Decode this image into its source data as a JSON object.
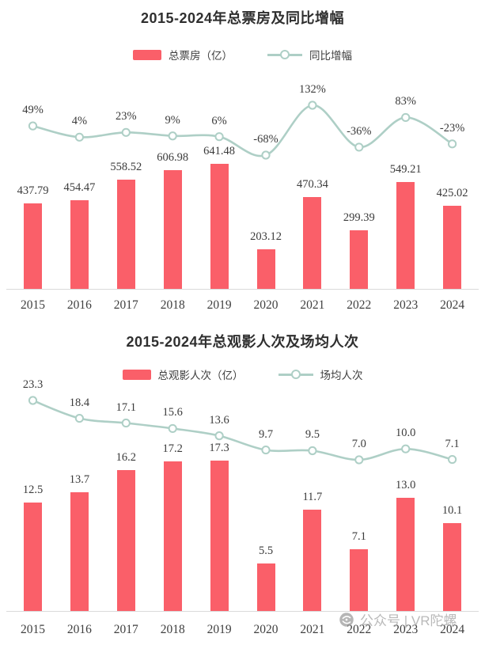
{
  "colors": {
    "bar": "#fa5f69",
    "line": "#aecfc6",
    "label": "#3b3b3b",
    "axis": "#dadada",
    "title": "#2f2f2f"
  },
  "watermark": {
    "icon": "gyro-logo",
    "text": "公众号 | VR陀螺"
  },
  "chart_data": [
    {
      "type": "bar",
      "title": "2015-2024年总票房及同比增幅",
      "categories": [
        "2015",
        "2016",
        "2017",
        "2018",
        "2019",
        "2020",
        "2021",
        "2022",
        "2023",
        "2024"
      ],
      "legend_position": "top",
      "grid": false,
      "xlabel": "",
      "ylabel": "",
      "series": [
        {
          "name": "总票房（亿）",
          "type": "bar",
          "color": "#fa5f69",
          "values": [
            437.79,
            454.47,
            558.52,
            606.98,
            641.48,
            203.12,
            470.34,
            299.39,
            549.21,
            425.02
          ],
          "labels": [
            "437.79",
            "454.47",
            "558.52",
            "606.98",
            "641.48",
            "203.12",
            "470.34",
            "299.39",
            "549.21",
            "425.02"
          ]
        },
        {
          "name": "同比增幅",
          "type": "line",
          "color": "#aecfc6",
          "values": [
            49,
            4,
            23,
            9,
            6,
            -68,
            132,
            -36,
            83,
            -23
          ],
          "labels": [
            "49%",
            "4%",
            "23%",
            "9%",
            "6%",
            "-68%",
            "132%",
            "-36%",
            "83%",
            "-23%"
          ]
        }
      ]
    },
    {
      "type": "bar",
      "title": "2015-2024年总观影人次及场均人次",
      "categories": [
        "2015",
        "2016",
        "2017",
        "2018",
        "2019",
        "2020",
        "2021",
        "2022",
        "2023",
        "2024"
      ],
      "legend_position": "top",
      "grid": false,
      "xlabel": "",
      "ylabel": "",
      "series": [
        {
          "name": "总观影人次（亿）",
          "type": "bar",
          "color": "#fa5f69",
          "values": [
            12.5,
            13.7,
            16.2,
            17.2,
            17.3,
            5.5,
            11.7,
            7.1,
            13.0,
            10.1
          ],
          "labels": [
            "12.5",
            "13.7",
            "16.2",
            "17.2",
            "17.3",
            "5.5",
            "11.7",
            "7.1",
            "13.0",
            "10.1"
          ]
        },
        {
          "name": "场均人次",
          "type": "line",
          "color": "#aecfc6",
          "values": [
            23.3,
            18.4,
            17.1,
            15.6,
            13.6,
            9.7,
            9.5,
            7.0,
            10.0,
            7.1
          ],
          "labels": [
            "23.3",
            "18.4",
            "17.1",
            "15.6",
            "13.6",
            "9.7",
            "9.5",
            "7.0",
            "10.0",
            "7.1"
          ]
        }
      ]
    }
  ]
}
